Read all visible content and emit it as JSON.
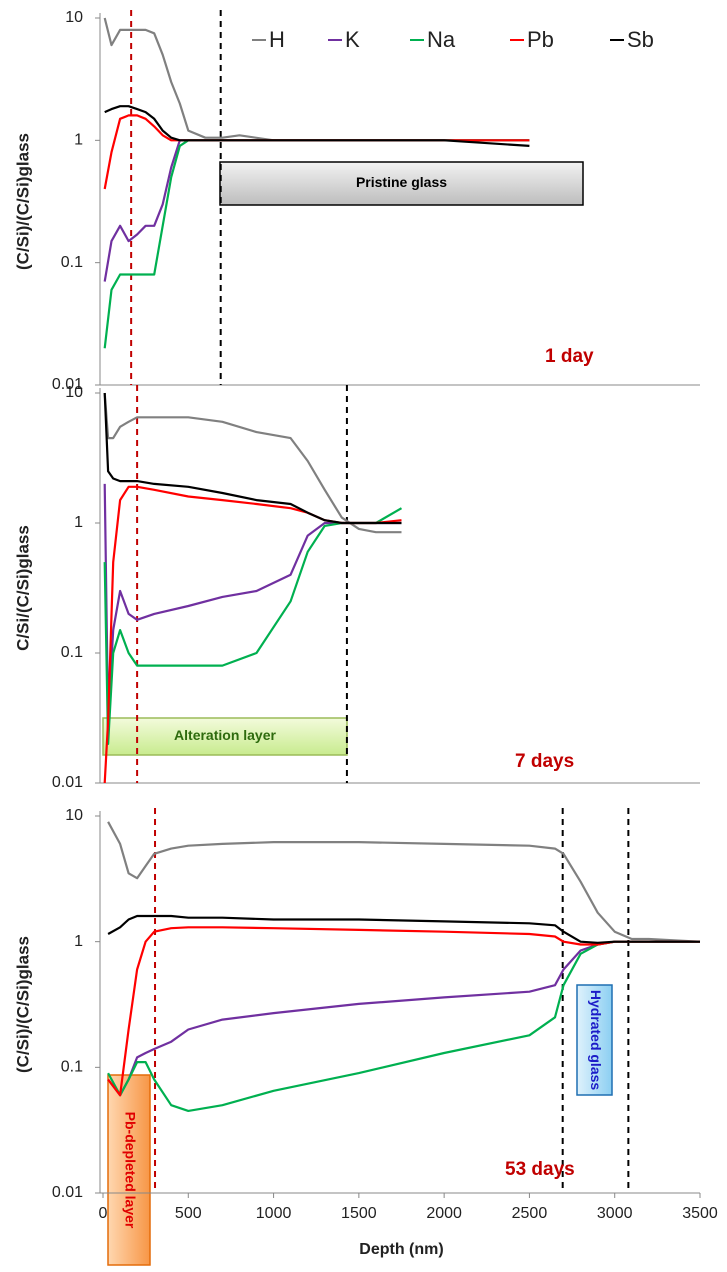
{
  "chart_data": [
    {
      "type": "line",
      "label": "1 day",
      "y_label": "(C/Si)/(C/Si)glass",
      "yscale": "log",
      "legend": "top-right",
      "xlim": [
        0,
        3500
      ],
      "ylim": [
        0.01,
        10
      ],
      "yticks": [
        0.01,
        0.1,
        1,
        10
      ],
      "x": [
        10,
        50,
        100,
        150,
        200,
        250,
        300,
        350,
        400,
        450,
        500,
        600,
        700,
        800,
        1000,
        1500,
        2000,
        2500
      ],
      "series": [
        {
          "name": "H",
          "color": "#808080",
          "values": [
            10,
            6,
            8,
            8,
            8,
            8,
            7.5,
            5,
            3,
            2,
            1.2,
            1.05,
            1.05,
            1.1,
            1,
            1,
            1,
            1
          ]
        },
        {
          "name": "K",
          "color": "#7030a0",
          "values": [
            0.07,
            0.15,
            0.2,
            0.15,
            0.17,
            0.2,
            0.2,
            0.3,
            0.6,
            1,
            1,
            1,
            1,
            1,
            1,
            1,
            1,
            1
          ]
        },
        {
          "name": "Na",
          "color": "#00b050",
          "values": [
            0.02,
            0.06,
            0.08,
            0.08,
            0.08,
            0.08,
            0.08,
            0.2,
            0.5,
            0.9,
            1,
            1,
            1,
            1,
            1,
            1,
            1,
            1
          ]
        },
        {
          "name": "Pb",
          "color": "#ff0000",
          "values": [
            0.4,
            0.8,
            1.5,
            1.6,
            1.6,
            1.5,
            1.3,
            1.1,
            1,
            1,
            1,
            1,
            1,
            1,
            1,
            1,
            1,
            1
          ]
        },
        {
          "name": "Sb",
          "color": "#000000",
          "values": [
            1.7,
            1.8,
            1.9,
            1.9,
            1.8,
            1.7,
            1.5,
            1.2,
            1.05,
            1,
            1,
            1,
            1,
            1,
            1,
            1,
            1,
            0.9
          ]
        }
      ],
      "vlines": [
        {
          "x": 165,
          "color": "#c00000"
        },
        {
          "x": 690,
          "color": "#000000"
        }
      ],
      "annotations": [
        "Pristine glass"
      ]
    },
    {
      "type": "line",
      "label": "7 days",
      "y_label": "C/Si/(C/Si)glass",
      "yscale": "log",
      "xlim": [
        0,
        3500
      ],
      "ylim": [
        0.01,
        10
      ],
      "yticks": [
        0.01,
        0.1,
        1,
        10
      ],
      "x": [
        10,
        30,
        60,
        100,
        150,
        200,
        300,
        500,
        700,
        900,
        1100,
        1200,
        1300,
        1400,
        1500,
        1600,
        1750
      ],
      "series": [
        {
          "name": "H",
          "color": "#808080",
          "values": [
            10,
            4.5,
            4.5,
            5.5,
            6,
            6.5,
            6.5,
            6.5,
            6,
            5,
            4.5,
            3,
            1.8,
            1.1,
            0.9,
            0.85,
            0.85
          ]
        },
        {
          "name": "K",
          "color": "#7030a0",
          "values": [
            2,
            0.03,
            0.15,
            0.3,
            0.2,
            0.18,
            0.2,
            0.23,
            0.27,
            0.3,
            0.4,
            0.8,
            1,
            1,
            1,
            1,
            1
          ]
        },
        {
          "name": "Na",
          "color": "#00b050",
          "values": [
            0.5,
            0.02,
            0.1,
            0.15,
            0.1,
            0.08,
            0.08,
            0.08,
            0.08,
            0.1,
            0.25,
            0.6,
            0.95,
            1,
            1,
            1,
            1.3
          ]
        },
        {
          "name": "Pb",
          "color": "#ff0000",
          "values": [
            0.01,
            0.03,
            0.5,
            1.5,
            1.9,
            1.9,
            1.8,
            1.6,
            1.5,
            1.4,
            1.3,
            1.2,
            1.05,
            1,
            1,
            1,
            1.05
          ]
        },
        {
          "name": "Sb",
          "color": "#000000",
          "values": [
            10,
            2.5,
            2.2,
            2.1,
            2.1,
            2.1,
            2,
            1.9,
            1.7,
            1.5,
            1.4,
            1.2,
            1.05,
            1,
            1,
            1,
            1
          ]
        }
      ],
      "vlines": [
        {
          "x": 200,
          "color": "#c00000"
        },
        {
          "x": 1430,
          "color": "#000000"
        }
      ],
      "annotations": [
        "Alteration layer"
      ]
    },
    {
      "type": "line",
      "label": "53 days",
      "y_label": "(C/Si)/(C/Si)glass",
      "x_label": "Depth (nm)",
      "yscale": "log",
      "xlim": [
        0,
        3500
      ],
      "ylim": [
        0.01,
        10
      ],
      "yticks": [
        0.01,
        0.1,
        1,
        10
      ],
      "xticks": [
        0,
        500,
        1000,
        1500,
        2000,
        2500,
        3000,
        3500
      ],
      "x": [
        30,
        100,
        150,
        200,
        250,
        300,
        400,
        500,
        700,
        1000,
        1500,
        2000,
        2500,
        2650,
        2700,
        2800,
        2900,
        3000,
        3100,
        3200,
        3500
      ],
      "series": [
        {
          "name": "H",
          "color": "#808080",
          "values": [
            9,
            6,
            3.5,
            3.2,
            4,
            5,
            5.5,
            5.8,
            6,
            6.2,
            6.2,
            6,
            5.8,
            5.5,
            5,
            3,
            1.7,
            1.2,
            1.05,
            1.05,
            1
          ]
        },
        {
          "name": "K",
          "color": "#7030a0",
          "values": [
            0.08,
            0.06,
            0.08,
            0.12,
            0.13,
            0.14,
            0.16,
            0.2,
            0.24,
            0.27,
            0.32,
            0.36,
            0.4,
            0.45,
            0.6,
            0.85,
            0.95,
            1,
            1,
            1,
            1
          ]
        },
        {
          "name": "Na",
          "color": "#00b050",
          "values": [
            0.09,
            0.06,
            0.08,
            0.11,
            0.11,
            0.08,
            0.05,
            0.045,
            0.05,
            0.065,
            0.09,
            0.13,
            0.18,
            0.25,
            0.45,
            0.8,
            0.95,
            1,
            1,
            1,
            1
          ]
        },
        {
          "name": "Pb",
          "color": "#ff0000",
          "values": [
            0.08,
            0.06,
            0.2,
            0.6,
            1,
            1.2,
            1.28,
            1.3,
            1.3,
            1.28,
            1.24,
            1.2,
            1.15,
            1.1,
            1,
            0.95,
            0.95,
            1,
            1,
            1,
            1
          ]
        },
        {
          "name": "Sb",
          "color": "#000000",
          "values": [
            1.15,
            1.3,
            1.5,
            1.6,
            1.6,
            1.6,
            1.6,
            1.55,
            1.55,
            1.5,
            1.5,
            1.45,
            1.4,
            1.35,
            1.2,
            1,
            0.98,
            1,
            1,
            1,
            1
          ]
        }
      ],
      "vlines": [
        {
          "x": 305,
          "color": "#c00000"
        },
        {
          "x": 2695,
          "color": "#000000"
        },
        {
          "x": 3080,
          "color": "#000000"
        }
      ],
      "annotations": [
        "Pb-depleted layer",
        "Hydrated glass"
      ]
    }
  ]
}
